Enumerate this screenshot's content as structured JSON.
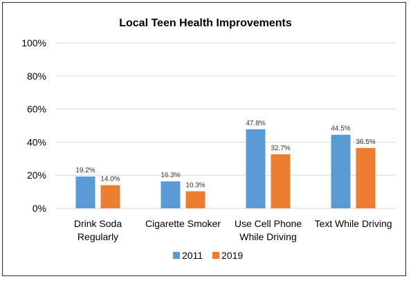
{
  "chart_data": {
    "type": "bar",
    "title": "Local Teen Health Improvements",
    "categories": [
      [
        "Drink Soda",
        "Regularly"
      ],
      [
        "Cigarette Smoker"
      ],
      [
        "Use Cell Phone",
        "While Driving"
      ],
      [
        "Text While Driving"
      ]
    ],
    "series": [
      {
        "name": "2011",
        "color": "#5b9bd5",
        "values": [
          19.2,
          16.3,
          47.8,
          44.5
        ],
        "labels": [
          "19.2%",
          "16.3%",
          "47.8%",
          "44.5%"
        ]
      },
      {
        "name": "2019",
        "color": "#ed7d31",
        "values": [
          14.0,
          10.3,
          32.7,
          36.5
        ],
        "labels": [
          "14.0%",
          "10.3%",
          "32.7%",
          "36.5%"
        ]
      }
    ],
    "ylim": [
      0,
      100
    ],
    "yticks": [
      "0%",
      "20%",
      "40%",
      "60%",
      "80%",
      "100%"
    ],
    "grid": true,
    "legend": "bottom"
  }
}
